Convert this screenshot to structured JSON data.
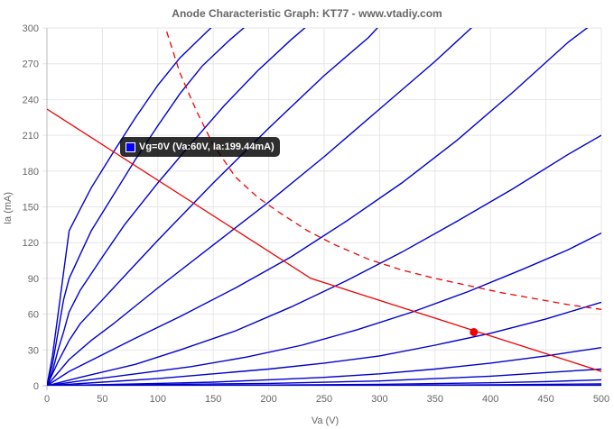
{
  "chart_data": {
    "type": "line",
    "title": "Anode Characteristic Graph: KT77 - www.vtadiy.com",
    "xlabel": "Va (V)",
    "ylabel": "Ia (mA)",
    "xlim": [
      0,
      500
    ],
    "ylim": [
      0,
      300
    ],
    "xticks": [
      "0",
      "50",
      "100",
      "150",
      "200",
      "250",
      "300",
      "350",
      "400",
      "450",
      "500"
    ],
    "yticks": [
      "0",
      "30",
      "60",
      "90",
      "120",
      "150",
      "180",
      "210",
      "240",
      "270",
      "300"
    ],
    "grid": true,
    "curve_color": "#0000cc",
    "load_line_color": "#ee0000",
    "tooltip": {
      "text": "Vg=0V (Va:60V, Ia:199.44mA)",
      "swatch_color": "#0000ff"
    },
    "grid_curves": [
      {
        "points": [
          [
            0,
            0
          ],
          [
            5,
            25
          ],
          [
            10,
            60
          ],
          [
            15,
            95
          ],
          [
            20,
            130
          ],
          [
            30,
            148
          ],
          [
            40,
            166
          ],
          [
            60,
            196
          ],
          [
            80,
            225
          ],
          [
            100,
            252
          ],
          [
            120,
            275
          ],
          [
            140,
            293
          ],
          [
            150,
            302
          ]
        ]
      },
      {
        "points": [
          [
            0,
            0
          ],
          [
            5,
            18
          ],
          [
            10,
            45
          ],
          [
            15,
            72
          ],
          [
            20,
            90
          ],
          [
            30,
            110
          ],
          [
            40,
            130
          ],
          [
            60,
            160
          ],
          [
            80,
            190
          ],
          [
            100,
            218
          ],
          [
            120,
            245
          ],
          [
            140,
            268
          ],
          [
            165,
            290
          ],
          [
            180,
            302
          ]
        ]
      },
      {
        "points": [
          [
            0,
            0
          ],
          [
            5,
            12
          ],
          [
            10,
            30
          ],
          [
            15,
            45
          ],
          [
            20,
            62
          ],
          [
            30,
            80
          ],
          [
            50,
            108
          ],
          [
            70,
            135
          ],
          [
            100,
            170
          ],
          [
            130,
            203
          ],
          [
            160,
            235
          ],
          [
            190,
            264
          ],
          [
            220,
            290
          ],
          [
            235,
            302
          ]
        ]
      },
      {
        "points": [
          [
            0,
            0
          ],
          [
            10,
            20
          ],
          [
            20,
            38
          ],
          [
            30,
            52
          ],
          [
            50,
            72
          ],
          [
            80,
            102
          ],
          [
            100,
            122
          ],
          [
            150,
            170
          ],
          [
            200,
            216
          ],
          [
            250,
            260
          ],
          [
            290,
            292
          ],
          [
            300,
            302
          ]
        ]
      },
      {
        "points": [
          [
            0,
            0
          ],
          [
            20,
            22
          ],
          [
            40,
            38
          ],
          [
            60,
            52
          ],
          [
            100,
            82
          ],
          [
            150,
            118
          ],
          [
            200,
            154
          ],
          [
            250,
            192
          ],
          [
            300,
            232
          ],
          [
            350,
            272
          ],
          [
            385,
            302
          ]
        ]
      },
      {
        "points": [
          [
            0,
            0
          ],
          [
            20,
            12
          ],
          [
            50,
            26
          ],
          [
            80,
            40
          ],
          [
            120,
            58
          ],
          [
            170,
            82
          ],
          [
            220,
            108
          ],
          [
            270,
            138
          ],
          [
            320,
            170
          ],
          [
            370,
            206
          ],
          [
            420,
            246
          ],
          [
            470,
            288
          ],
          [
            490,
            302
          ]
        ]
      },
      {
        "points": [
          [
            0,
            0
          ],
          [
            30,
            7
          ],
          [
            80,
            18
          ],
          [
            120,
            30
          ],
          [
            170,
            46
          ],
          [
            220,
            66
          ],
          [
            270,
            88
          ],
          [
            320,
            112
          ],
          [
            370,
            138
          ],
          [
            420,
            165
          ],
          [
            470,
            194
          ],
          [
            500,
            210
          ]
        ]
      },
      {
        "points": [
          [
            0,
            0
          ],
          [
            30,
            4
          ],
          [
            80,
            10
          ],
          [
            130,
            16
          ],
          [
            180,
            24
          ],
          [
            230,
            34
          ],
          [
            280,
            47
          ],
          [
            330,
            62
          ],
          [
            380,
            79
          ],
          [
            430,
            98
          ],
          [
            470,
            114
          ],
          [
            500,
            128
          ]
        ]
      },
      {
        "points": [
          [
            0,
            0
          ],
          [
            50,
            3
          ],
          [
            100,
            6
          ],
          [
            150,
            10
          ],
          [
            200,
            14
          ],
          [
            250,
            19
          ],
          [
            300,
            25
          ],
          [
            350,
            34
          ],
          [
            400,
            44
          ],
          [
            450,
            56
          ],
          [
            500,
            70
          ]
        ]
      },
      {
        "points": [
          [
            0,
            0
          ],
          [
            100,
            2
          ],
          [
            150,
            3
          ],
          [
            200,
            5
          ],
          [
            250,
            7
          ],
          [
            300,
            10
          ],
          [
            350,
            14
          ],
          [
            400,
            19
          ],
          [
            450,
            25
          ],
          [
            500,
            32
          ]
        ]
      },
      {
        "points": [
          [
            0,
            0
          ],
          [
            100,
            1
          ],
          [
            200,
            2
          ],
          [
            300,
            4
          ],
          [
            350,
            6
          ],
          [
            400,
            8
          ],
          [
            450,
            11
          ],
          [
            500,
            14
          ]
        ]
      },
      {
        "points": [
          [
            0,
            0
          ],
          [
            200,
            0.6
          ],
          [
            300,
            1.2
          ],
          [
            400,
            2.5
          ],
          [
            450,
            3.5
          ],
          [
            500,
            5
          ]
        ]
      },
      {
        "points": [
          [
            0,
            0
          ],
          [
            300,
            0.3
          ],
          [
            400,
            0.8
          ],
          [
            500,
            1.5
          ]
        ]
      },
      {
        "points": [
          [
            0,
            0
          ],
          [
            500,
            0.4
          ]
        ]
      }
    ],
    "load_line": {
      "points": [
        [
          0,
          232
        ],
        [
          238,
          90
        ],
        [
          500,
          12
        ]
      ]
    },
    "dissipation_curve": {
      "points": [
        [
          108,
          297
        ],
        [
          120,
          262
        ],
        [
          135,
          230
        ],
        [
          150,
          202
        ],
        [
          170,
          175
        ],
        [
          190,
          158
        ],
        [
          210,
          145
        ],
        [
          235,
          130
        ],
        [
          260,
          118
        ],
        [
          290,
          106
        ],
        [
          320,
          97
        ],
        [
          350,
          90
        ],
        [
          380,
          84
        ],
        [
          410,
          78
        ],
        [
          440,
          73
        ],
        [
          470,
          68
        ],
        [
          500,
          64
        ]
      ]
    },
    "operating_point": {
      "x": 385,
      "y": 45
    }
  }
}
